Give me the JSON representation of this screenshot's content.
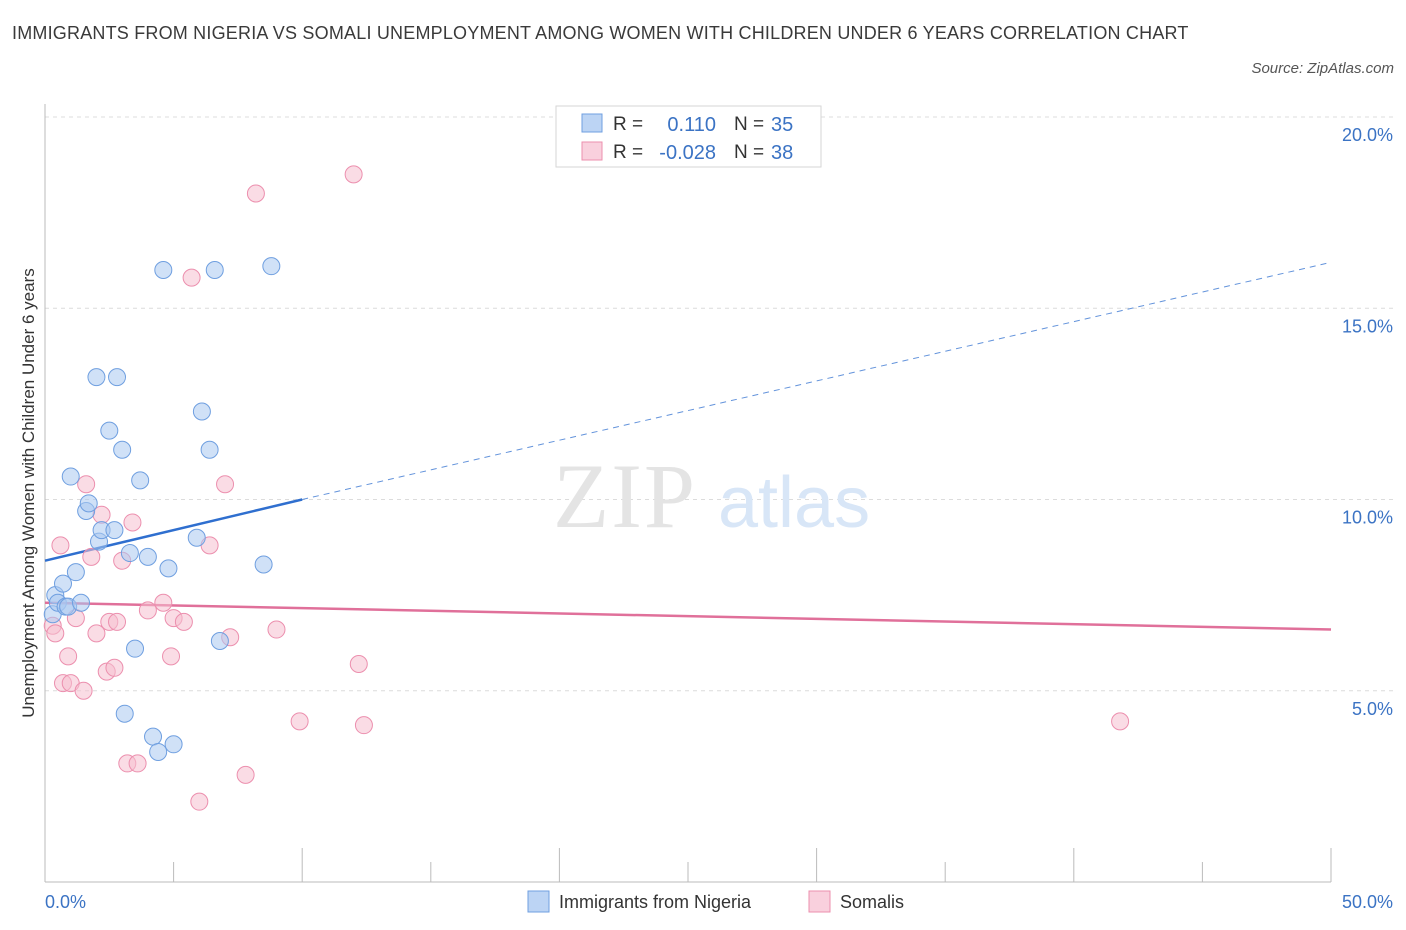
{
  "title": "IMMIGRANTS FROM NIGERIA VS SOMALI UNEMPLOYMENT AMONG WOMEN WITH CHILDREN UNDER 6 YEARS CORRELATION CHART",
  "source": "Source: ZipAtlas.com",
  "watermark": {
    "zip": "ZIP",
    "atlas": "atlas"
  },
  "colors": {
    "nigeria_fill": "#a9c8f0",
    "nigeria_stroke": "#6f9fe0",
    "nigeria_line": "#2f6fcf",
    "somali_fill": "#f6bfd0",
    "somali_stroke": "#ec8fae",
    "somali_line": "#e0709a",
    "tick_text": "#3b73c4",
    "grid": "#dcdcdc"
  },
  "legend": {
    "rows": [
      {
        "r_label": "R =",
        "r_value": "0.110",
        "n_label": "N =",
        "n_value": "35"
      },
      {
        "r_label": "R =",
        "r_value": "-0.028",
        "n_label": "N =",
        "n_value": "38"
      }
    ]
  },
  "chart_data": {
    "type": "scatter",
    "title": "IMMIGRANTS FROM NIGERIA VS SOMALI UNEMPLOYMENT AMONG WOMEN WITH CHILDREN UNDER 6 YEARS CORRELATION CHART",
    "xlabel": "",
    "ylabel": "Unemployment Among Women with Children Under 6 years",
    "xlim": [
      0,
      50
    ],
    "ylim": [
      0,
      20
    ],
    "x_tick_labels": [
      "0.0%",
      "50.0%"
    ],
    "y_ticks": [
      5,
      10,
      15,
      20
    ],
    "y_tick_labels": [
      "5.0%",
      "10.0%",
      "15.0%",
      "20.0%"
    ],
    "grid": true,
    "legend_position": "bottom",
    "series": [
      {
        "name": "Immigrants from Nigeria",
        "points": [
          [
            0.3,
            7.0
          ],
          [
            0.4,
            7.5
          ],
          [
            0.5,
            7.3
          ],
          [
            0.7,
            7.8
          ],
          [
            0.8,
            7.2
          ],
          [
            0.9,
            7.2
          ],
          [
            1.0,
            10.6
          ],
          [
            1.2,
            8.1
          ],
          [
            1.4,
            7.3
          ],
          [
            1.6,
            9.7
          ],
          [
            1.7,
            9.9
          ],
          [
            2.0,
            13.2
          ],
          [
            2.1,
            8.9
          ],
          [
            2.2,
            9.2
          ],
          [
            2.5,
            11.8
          ],
          [
            2.7,
            9.2
          ],
          [
            2.8,
            13.2
          ],
          [
            3.0,
            11.3
          ],
          [
            3.1,
            4.4
          ],
          [
            3.3,
            8.6
          ],
          [
            3.5,
            6.1
          ],
          [
            3.7,
            10.5
          ],
          [
            4.0,
            8.5
          ],
          [
            4.2,
            3.8
          ],
          [
            4.4,
            3.4
          ],
          [
            4.6,
            16.0
          ],
          [
            4.8,
            8.2
          ],
          [
            5.0,
            3.6
          ],
          [
            5.9,
            9.0
          ],
          [
            6.1,
            12.3
          ],
          [
            6.4,
            11.3
          ],
          [
            6.6,
            16.0
          ],
          [
            6.8,
            6.3
          ],
          [
            8.5,
            8.3
          ],
          [
            8.8,
            16.1
          ]
        ],
        "trend": {
          "x": [
            0,
            10
          ],
          "y": [
            8.4,
            10.0
          ],
          "extended_to": [
            50,
            16.2
          ]
        }
      },
      {
        "name": "Somalis",
        "points": [
          [
            0.3,
            6.7
          ],
          [
            0.4,
            6.5
          ],
          [
            0.6,
            8.8
          ],
          [
            0.7,
            5.2
          ],
          [
            0.9,
            5.9
          ],
          [
            1.0,
            5.2
          ],
          [
            1.2,
            6.9
          ],
          [
            1.5,
            5.0
          ],
          [
            1.6,
            10.4
          ],
          [
            1.8,
            8.5
          ],
          [
            2.0,
            6.5
          ],
          [
            2.2,
            9.6
          ],
          [
            2.4,
            5.5
          ],
          [
            2.5,
            6.8
          ],
          [
            2.7,
            5.6
          ],
          [
            2.8,
            6.8
          ],
          [
            3.0,
            8.4
          ],
          [
            3.2,
            3.1
          ],
          [
            3.4,
            9.4
          ],
          [
            3.6,
            3.1
          ],
          [
            4.0,
            7.1
          ],
          [
            4.6,
            7.3
          ],
          [
            4.9,
            5.9
          ],
          [
            5.0,
            6.9
          ],
          [
            5.4,
            6.8
          ],
          [
            5.7,
            15.8
          ],
          [
            6.0,
            2.1
          ],
          [
            6.4,
            8.8
          ],
          [
            7.0,
            10.4
          ],
          [
            7.2,
            6.4
          ],
          [
            7.8,
            2.8
          ],
          [
            8.2,
            18.0
          ],
          [
            9.0,
            6.6
          ],
          [
            9.9,
            4.2
          ],
          [
            12.0,
            18.5
          ],
          [
            12.2,
            5.7
          ],
          [
            12.4,
            4.1
          ],
          [
            41.8,
            4.2
          ]
        ],
        "trend": {
          "x": [
            0,
            50
          ],
          "y": [
            7.3,
            6.6
          ]
        }
      }
    ]
  }
}
